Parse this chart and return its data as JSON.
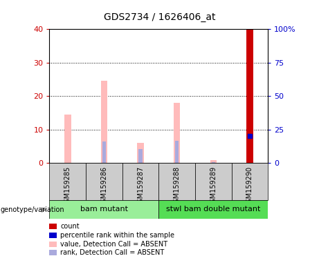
{
  "title": "GDS2734 / 1626406_at",
  "samples": [
    "GSM159285",
    "GSM159286",
    "GSM159287",
    "GSM159288",
    "GSM159289",
    "GSM159290"
  ],
  "pink_values": [
    14.5,
    24.5,
    6.0,
    18.0,
    0.8,
    40.0
  ],
  "blue_rank_values": [
    0.0,
    16.0,
    10.5,
    16.5,
    0.8,
    0.0
  ],
  "red_count_values": [
    0.0,
    0.0,
    0.0,
    0.0,
    0.0,
    40.0
  ],
  "blue_dot_scaled": [
    0.0,
    0.0,
    0.0,
    0.0,
    0.0,
    20.0
  ],
  "left_ylim": [
    0,
    40
  ],
  "right_ylim": [
    0,
    100
  ],
  "left_yticks": [
    0,
    10,
    20,
    30,
    40
  ],
  "right_yticks": [
    0,
    25,
    50,
    75,
    100
  ],
  "right_yticklabels": [
    "0",
    "25",
    "50",
    "75",
    "100%"
  ],
  "group1_label": "bam mutant",
  "group2_label": "stwl bam double mutant",
  "group1_indices": [
    0,
    1,
    2
  ],
  "group2_indices": [
    3,
    4,
    5
  ],
  "group1_color": "#99ee99",
  "group2_color": "#55dd55",
  "sample_box_color": "#cccccc",
  "pink_color": "#ffbbbb",
  "blue_rank_color": "#aaaadd",
  "red_color": "#cc0000",
  "blue_dot_color": "#0000cc",
  "left_tick_color": "#cc0000",
  "right_tick_color": "#0000cc",
  "legend_items": [
    {
      "color": "#cc0000",
      "label": "count"
    },
    {
      "color": "#0000cc",
      "label": "percentile rank within the sample"
    },
    {
      "color": "#ffbbbb",
      "label": "value, Detection Call = ABSENT"
    },
    {
      "color": "#aaaadd",
      "label": "rank, Detection Call = ABSENT"
    }
  ]
}
